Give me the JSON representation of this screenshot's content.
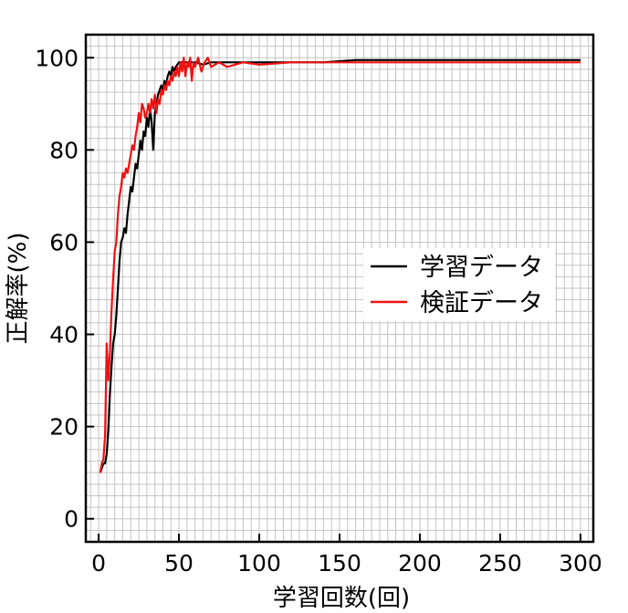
{
  "chart_data": {
    "type": "line",
    "title": "",
    "xlabel": "学習回数(回)",
    "ylabel": "正解率(%)",
    "xlim": [
      -8,
      308
    ],
    "ylim": [
      -5,
      105
    ],
    "xticks": [
      0,
      50,
      100,
      150,
      200,
      250,
      300
    ],
    "yticks": [
      0,
      20,
      40,
      60,
      80,
      100
    ],
    "x_minor_step": 5,
    "y_minor_step": 2.5,
    "grid": true,
    "legend_position": "center-right",
    "series": [
      {
        "name": "学習データ",
        "color": "#000000",
        "points": [
          [
            1,
            10
          ],
          [
            2,
            11
          ],
          [
            3,
            12
          ],
          [
            4,
            12
          ],
          [
            5,
            14
          ],
          [
            6,
            19
          ],
          [
            7,
            27
          ],
          [
            8,
            33
          ],
          [
            9,
            38
          ],
          [
            10,
            40
          ],
          [
            11,
            44
          ],
          [
            12,
            50
          ],
          [
            13,
            56
          ],
          [
            14,
            60
          ],
          [
            15,
            61
          ],
          [
            16,
            63
          ],
          [
            17,
            62
          ],
          [
            18,
            66
          ],
          [
            19,
            69
          ],
          [
            20,
            72
          ],
          [
            21,
            71
          ],
          [
            22,
            74
          ],
          [
            23,
            77
          ],
          [
            24,
            76
          ],
          [
            25,
            79
          ],
          [
            26,
            82
          ],
          [
            27,
            80
          ],
          [
            28,
            84
          ],
          [
            29,
            83
          ],
          [
            30,
            87
          ],
          [
            31,
            85
          ],
          [
            32,
            89
          ],
          [
            33,
            86
          ],
          [
            34,
            80
          ],
          [
            35,
            88
          ],
          [
            36,
            90
          ],
          [
            37,
            92
          ],
          [
            38,
            93
          ],
          [
            39,
            94
          ],
          [
            40,
            93
          ],
          [
            41,
            95
          ],
          [
            42,
            94
          ],
          [
            43,
            96
          ],
          [
            44,
            97
          ],
          [
            45,
            96
          ],
          [
            46,
            98
          ],
          [
            47,
            97
          ],
          [
            48,
            98
          ],
          [
            50,
            99
          ],
          [
            55,
            99
          ],
          [
            60,
            99
          ],
          [
            65,
            98.5
          ],
          [
            70,
            99
          ],
          [
            80,
            99
          ],
          [
            90,
            99
          ],
          [
            100,
            99
          ],
          [
            120,
            99
          ],
          [
            140,
            99
          ],
          [
            160,
            99.5
          ],
          [
            180,
            99.5
          ],
          [
            200,
            99.5
          ],
          [
            220,
            99.5
          ],
          [
            240,
            99.5
          ],
          [
            260,
            99.5
          ],
          [
            280,
            99.5
          ],
          [
            300,
            99.5
          ]
        ]
      },
      {
        "name": "検証データ",
        "color": "#ee1111",
        "points": [
          [
            1,
            10
          ],
          [
            2,
            12
          ],
          [
            3,
            13
          ],
          [
            4,
            18
          ],
          [
            5,
            38
          ],
          [
            6,
            30
          ],
          [
            7,
            36
          ],
          [
            8,
            45
          ],
          [
            9,
            52
          ],
          [
            10,
            58
          ],
          [
            11,
            60
          ],
          [
            12,
            66
          ],
          [
            13,
            70
          ],
          [
            14,
            72
          ],
          [
            15,
            75
          ],
          [
            16,
            74
          ],
          [
            17,
            76
          ],
          [
            18,
            75
          ],
          [
            19,
            77
          ],
          [
            20,
            79
          ],
          [
            21,
            81
          ],
          [
            22,
            80
          ],
          [
            23,
            83
          ],
          [
            24,
            85
          ],
          [
            25,
            88
          ],
          [
            26,
            86
          ],
          [
            27,
            90
          ],
          [
            28,
            89
          ],
          [
            29,
            87
          ],
          [
            30,
            88
          ],
          [
            31,
            90
          ],
          [
            32,
            88
          ],
          [
            33,
            91
          ],
          [
            34,
            89
          ],
          [
            35,
            92
          ],
          [
            36,
            88
          ],
          [
            37,
            91
          ],
          [
            38,
            90
          ],
          [
            39,
            93
          ],
          [
            40,
            92
          ],
          [
            41,
            94
          ],
          [
            42,
            93
          ],
          [
            43,
            95
          ],
          [
            44,
            94
          ],
          [
            45,
            96
          ],
          [
            46,
            95
          ],
          [
            47,
            97
          ],
          [
            48,
            96
          ],
          [
            49,
            98
          ],
          [
            50,
            96
          ],
          [
            51,
            99
          ],
          [
            52,
            97
          ],
          [
            53,
            100
          ],
          [
            54,
            96
          ],
          [
            55,
            99
          ],
          [
            56,
            98
          ],
          [
            57,
            100
          ],
          [
            58,
            95
          ],
          [
            59,
            99
          ],
          [
            60,
            98
          ],
          [
            62,
            100
          ],
          [
            64,
            97
          ],
          [
            66,
            99
          ],
          [
            68,
            100
          ],
          [
            70,
            98
          ],
          [
            75,
            99
          ],
          [
            80,
            98
          ],
          [
            90,
            99
          ],
          [
            100,
            98.5
          ],
          [
            120,
            99
          ],
          [
            140,
            99
          ],
          [
            160,
            99
          ],
          [
            180,
            99
          ],
          [
            200,
            99
          ],
          [
            220,
            99
          ],
          [
            240,
            99
          ],
          [
            260,
            99
          ],
          [
            280,
            99
          ],
          [
            300,
            99
          ]
        ]
      }
    ]
  }
}
